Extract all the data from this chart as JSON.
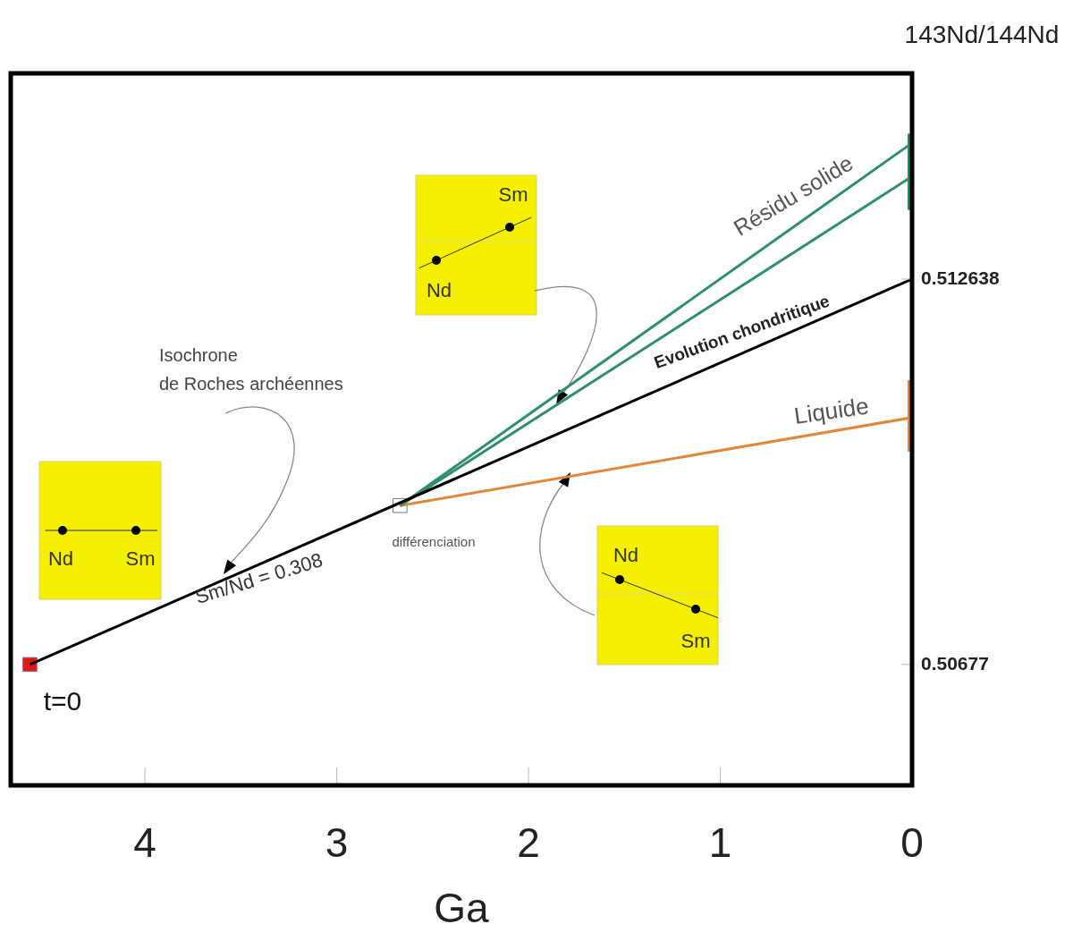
{
  "chart_data": {
    "type": "line",
    "xlabel": "Ga",
    "ylabel": "143Nd/144Nd",
    "xlim": [
      4.7,
      0
    ],
    "xticks": [
      4,
      3,
      2,
      1,
      0
    ],
    "ylim": [
      0.50493,
      0.51577
    ],
    "yticks": [
      0.50677,
      0.512638
    ],
    "grid": false,
    "line_style": "solid",
    "series": [
      {
        "x": [
          4.6,
          0
        ],
        "values": [
          0.50677,
          0.512638
        ],
        "color": "#000000"
      },
      {
        "x": [
          2.67,
          0
        ],
        "values": [
          0.50919,
          0.51471
        ],
        "color": "#2e8f6a"
      },
      {
        "x": [
          2.67,
          0
        ],
        "values": [
          0.50919,
          0.5142
        ],
        "color": "#2e8f6a"
      },
      {
        "x": [
          2.67,
          0
        ],
        "values": [
          0.50919,
          0.51053
        ],
        "color": "#e0873c"
      },
      {
        "x": [
          0,
          0
        ],
        "values": [
          0.51369,
          0.51485
        ],
        "color": "#16935a"
      },
      {
        "x": [
          0,
          0
        ],
        "values": [
          0.51001,
          0.5111
        ],
        "color": "#e0873c"
      },
      {
        "type": "scatter",
        "marker": "square",
        "x": [
          4.6
        ],
        "values": [
          0.50677
        ],
        "color": "#e01818"
      },
      {
        "type": "scatter",
        "marker": "square",
        "x": [
          2.67
        ],
        "values": [
          0.50919
        ],
        "color": "#ffffff"
      }
    ],
    "annotations": [
      "Isochrone\nde Roches archéennes",
      "Sm/Nd = 0.308",
      "différenciation",
      "t=0",
      "Résidu solide",
      "Evolution chondritique",
      "Liquide",
      "Nd",
      "Sm",
      "Nd",
      "Sm",
      "Nd",
      "Sm"
    ]
  }
}
